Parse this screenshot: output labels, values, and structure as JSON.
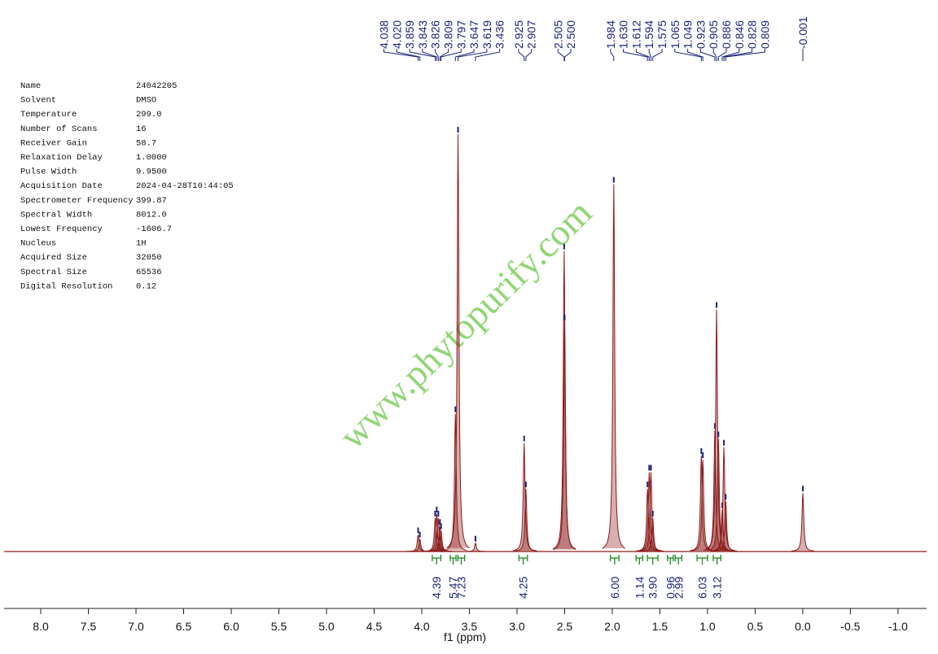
{
  "parameters": [
    [
      "Name",
      "24042205"
    ],
    [
      "Solvent",
      "DMSO"
    ],
    [
      "Temperature",
      "299.0"
    ],
    [
      "Number of Scans",
      "16"
    ],
    [
      "Receiver Gain",
      "58.7"
    ],
    [
      "Relaxation Delay",
      "1.0000"
    ],
    [
      "Pulse Width",
      "9.9500"
    ],
    [
      "Acquisition Date",
      "2024-04-28T10:44:05"
    ],
    [
      "Spectrometer Frequency",
      "399.87"
    ],
    [
      "Spectral Width",
      "8012.0"
    ],
    [
      "Lowest Frequency",
      "-1606.7"
    ],
    [
      "Nucleus",
      "1H"
    ],
    [
      "Acquired Size",
      "32050"
    ],
    [
      "Spectral Size",
      "65536"
    ],
    [
      "Digital Resolution",
      "0.12"
    ]
  ],
  "chart_data": {
    "type": "spectrum",
    "xlabel": "f1 (ppm)",
    "watermark": "www.phytopurify.com",
    "color": "#8b1a1a",
    "label_color": "#1a237e",
    "integral_color": "#1f8a1f",
    "xlim": [
      8.385,
      -1.3
    ],
    "xticks": [
      {
        "value": 8,
        "label": "8.0"
      },
      {
        "value": 7.5,
        "label": "7.5"
      },
      {
        "value": 7,
        "label": "7.0"
      },
      {
        "value": 6.5,
        "label": "6.5"
      },
      {
        "value": 6,
        "label": "6.0"
      },
      {
        "value": 5.5,
        "label": "5.5"
      },
      {
        "value": 5,
        "label": "5.0"
      },
      {
        "value": 4.5,
        "label": "4.5"
      },
      {
        "value": 4,
        "label": "4.0"
      },
      {
        "value": 3.5,
        "label": "3.5"
      },
      {
        "value": 3,
        "label": "3.0"
      },
      {
        "value": 2.5,
        "label": "2.5"
      },
      {
        "value": 2,
        "label": "2.0"
      },
      {
        "value": 1.5,
        "label": "1.5"
      },
      {
        "value": 1,
        "label": "1.0"
      },
      {
        "value": 0.5,
        "label": "0.5"
      },
      {
        "value": 0,
        "label": "0.0"
      },
      {
        "value": -0.5,
        "label": "-0.5"
      },
      {
        "value": -1,
        "label": "-1.0"
      }
    ],
    "peak_labels": [
      {
        "value": 4.038,
        "label": "4.038"
      },
      {
        "value": 4.02,
        "label": "4.020"
      },
      {
        "value": 3.859,
        "label": "3.859"
      },
      {
        "value": 3.843,
        "label": "3.843"
      },
      {
        "value": 3.826,
        "label": "3.826"
      },
      {
        "value": 3.809,
        "label": "3.809"
      },
      {
        "value": 3.797,
        "label": "3.797"
      },
      {
        "value": 3.647,
        "label": "3.647"
      },
      {
        "value": 3.619,
        "label": "3.619"
      },
      {
        "value": 3.436,
        "label": "3.436"
      },
      {
        "value": 2.925,
        "label": "2.925"
      },
      {
        "value": 2.907,
        "label": "2.907"
      },
      {
        "value": 2.505,
        "label": "2.505"
      },
      {
        "value": 2.5,
        "label": "2.500"
      },
      {
        "value": 1.984,
        "label": "1.984"
      },
      {
        "value": 1.63,
        "label": "1.630"
      },
      {
        "value": 1.612,
        "label": "1.612"
      },
      {
        "value": 1.594,
        "label": "1.594"
      },
      {
        "value": 1.575,
        "label": "1.575"
      },
      {
        "value": 1.065,
        "label": "1.065"
      },
      {
        "value": 1.049,
        "label": "1.049"
      },
      {
        "value": 0.923,
        "label": "0.923"
      },
      {
        "value": 0.905,
        "label": "0.905"
      },
      {
        "value": 0.886,
        "label": "0.886"
      },
      {
        "value": 0.846,
        "label": "0.846"
      },
      {
        "value": 0.828,
        "label": "0.828"
      },
      {
        "value": 0.809,
        "label": "0.809"
      },
      {
        "value": -0.001,
        "label": "-0.001"
      }
    ],
    "peak_heights": [
      4,
      3,
      8,
      9,
      8,
      6,
      5,
      33,
      100,
      2,
      26,
      15,
      72,
      55,
      88,
      15,
      19,
      19,
      8,
      23,
      22,
      29,
      58,
      27,
      10,
      25,
      12,
      14
    ],
    "integrals": [
      {
        "value": 4.39,
        "label": "4.39"
      },
      {
        "value": 5.47,
        "label": "5.47"
      },
      {
        "value": 7.23,
        "label": "7.23"
      },
      {
        "value": 4.25,
        "label": "4.25"
      },
      {
        "value": 6,
        "label": "6.00"
      },
      {
        "value": 1.14,
        "label": "1.14"
      },
      {
        "value": 3.9,
        "label": "3.90"
      },
      {
        "value": 0.96,
        "label": "0.96"
      },
      {
        "value": 2.99,
        "label": "2.99"
      },
      {
        "value": 6.03,
        "label": "6.03"
      },
      {
        "value": 3.12,
        "label": "3.12"
      }
    ],
    "integral_ranges": [
      [
        3.89,
        3.8
      ],
      [
        3.7,
        3.64
      ],
      [
        3.62,
        3.55
      ],
      [
        2.98,
        2.89
      ],
      [
        2.02,
        1.93
      ],
      [
        1.75,
        1.68
      ],
      [
        1.63,
        1.52
      ],
      [
        1.42,
        1.36
      ],
      [
        1.34,
        1.27
      ],
      [
        1.11,
        1.0
      ],
      [
        0.94,
        0.86
      ]
    ]
  }
}
